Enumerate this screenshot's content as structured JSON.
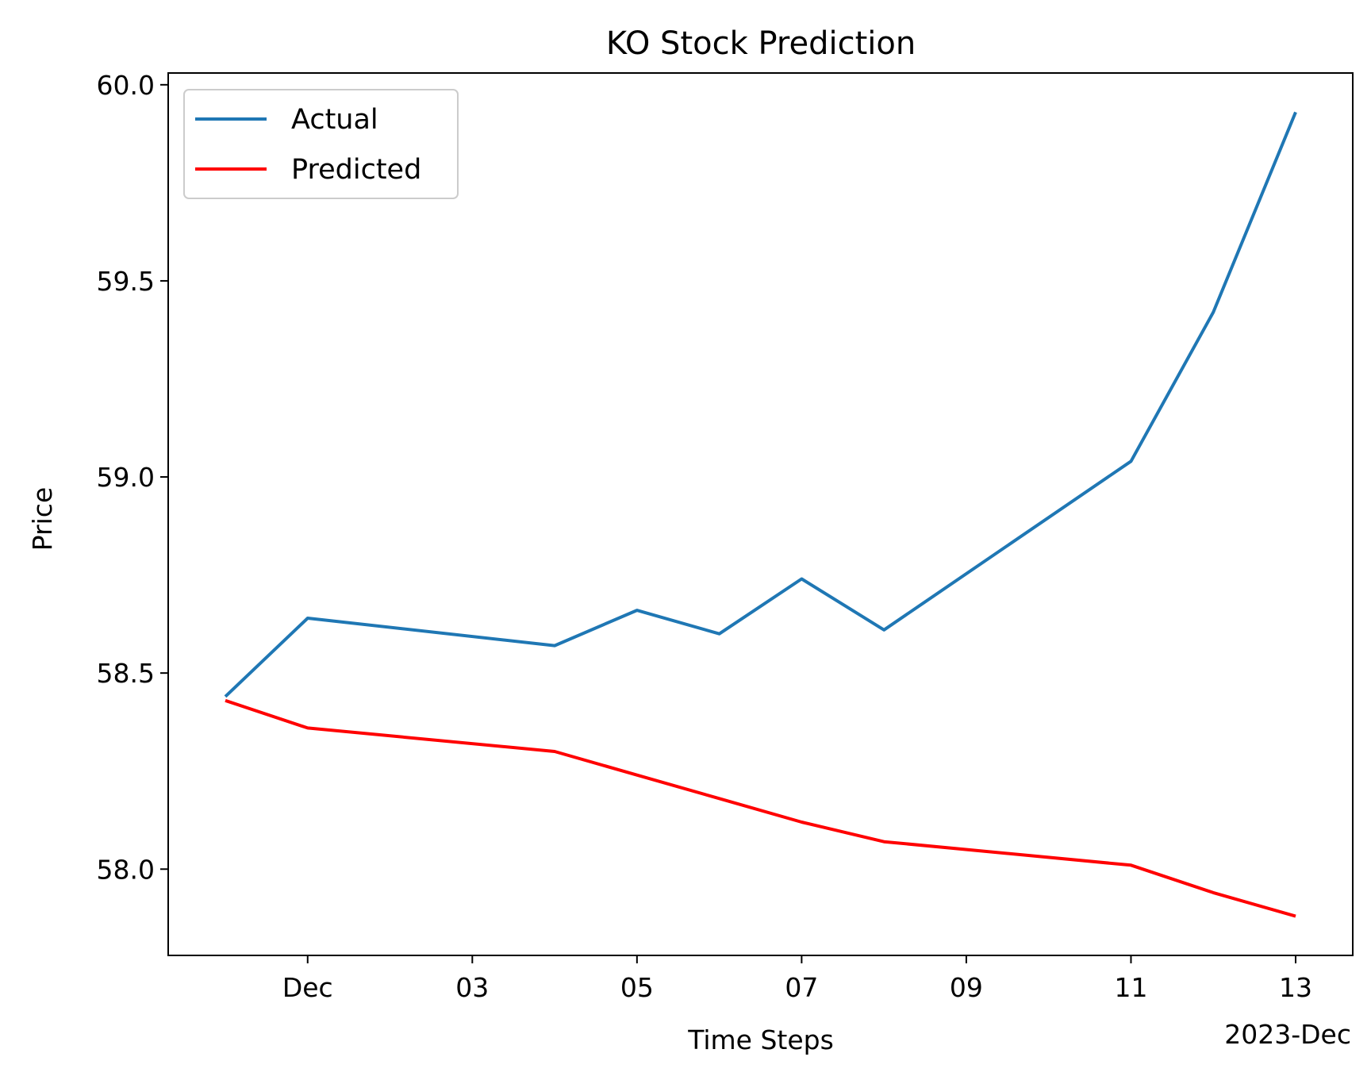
{
  "chart_data": {
    "type": "line",
    "title": "KO Stock Prediction",
    "xlabel": "Time Steps",
    "ylabel": "Price",
    "x_axis_offset_label": "2023-Dec",
    "x": [
      "2023-11-30",
      "2023-12-01",
      "2023-12-04",
      "2023-12-05",
      "2023-12-06",
      "2023-12-07",
      "2023-12-08",
      "2023-12-11",
      "2023-12-12",
      "2023-12-13"
    ],
    "series": [
      {
        "name": "Actual",
        "color": "#1f77b4",
        "values": [
          58.44,
          58.64,
          58.57,
          58.66,
          58.6,
          58.74,
          58.61,
          59.04,
          59.42,
          59.93
        ]
      },
      {
        "name": "Predicted",
        "color": "#ff0000",
        "values": [
          58.43,
          58.36,
          58.3,
          58.24,
          58.18,
          58.12,
          58.07,
          58.01,
          57.94,
          57.88
        ]
      }
    ],
    "xlim": [
      "2023-11-29 07:21",
      "2023-12-13 16:39"
    ],
    "ylim": [
      57.78,
      60.03
    ],
    "x_ticks": [
      {
        "date": "2023-12-01",
        "label": "Dec"
      },
      {
        "date": "2023-12-03",
        "label": "03"
      },
      {
        "date": "2023-12-05",
        "label": "05"
      },
      {
        "date": "2023-12-07",
        "label": "07"
      },
      {
        "date": "2023-12-09",
        "label": "09"
      },
      {
        "date": "2023-12-11",
        "label": "11"
      },
      {
        "date": "2023-12-13",
        "label": "13"
      }
    ],
    "y_ticks": [
      {
        "value": 58.0,
        "label": "58.0"
      },
      {
        "value": 58.5,
        "label": "58.5"
      },
      {
        "value": 59.0,
        "label": "59.0"
      },
      {
        "value": 59.5,
        "label": "59.5"
      },
      {
        "value": 60.0,
        "label": "60.0"
      }
    ],
    "grid": false,
    "legend_position": "top-left"
  }
}
